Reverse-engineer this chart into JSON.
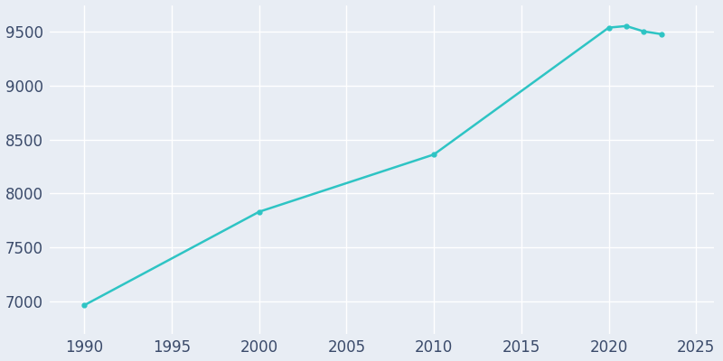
{
  "years": [
    1990,
    2000,
    2010,
    2020,
    2021,
    2022,
    2023
  ],
  "population": [
    6962,
    7830,
    8362,
    9540,
    9555,
    9505,
    9480
  ],
  "line_color": "#2EC4C4",
  "marker": "o",
  "marker_size": 3.5,
  "bg_color": "#E8EDF4",
  "grid_color": "#FFFFFF",
  "xlim": [
    1988,
    2026
  ],
  "ylim": [
    6700,
    9750
  ],
  "xticks": [
    1990,
    1995,
    2000,
    2005,
    2010,
    2015,
    2020,
    2025
  ],
  "yticks": [
    7000,
    7500,
    8000,
    8500,
    9000,
    9500
  ],
  "tick_fontsize": 12,
  "tick_color": "#3A4A6A",
  "linewidth": 1.8
}
